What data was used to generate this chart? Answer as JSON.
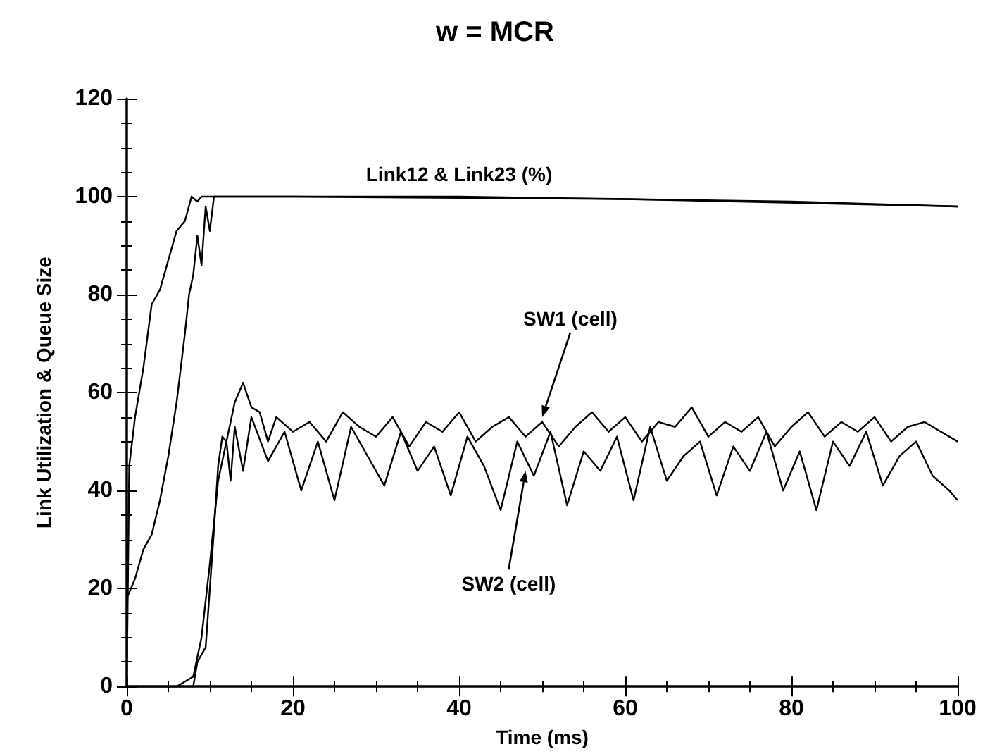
{
  "chart_data": {
    "type": "line",
    "title": "w = MCR",
    "xlabel": "Time (ms)",
    "ylabel": "Link Utilization & Queue Size",
    "xlim": [
      0,
      100
    ],
    "xticks": [
      0,
      20,
      40,
      60,
      80,
      100
    ],
    "ylim": [
      0,
      120
    ],
    "yticks": [
      0,
      20,
      40,
      60,
      80,
      100,
      120
    ],
    "grid": false,
    "marker": "none",
    "line_style": "solid",
    "series": [
      {
        "color": "#000000",
        "x": [
          0,
          0.3,
          1,
          2,
          3,
          4,
          5,
          6,
          7,
          7.8,
          8.5,
          9,
          20,
          40,
          60,
          80,
          100
        ],
        "values": [
          0,
          45,
          55,
          65,
          78,
          81,
          87,
          93,
          95,
          100,
          99,
          100,
          100,
          100,
          99.5,
          99,
          98
        ]
      },
      {
        "color": "#000000",
        "x": [
          0,
          1,
          2,
          3,
          4,
          5,
          6,
          7,
          7.5,
          8,
          8.5,
          9,
          9.5,
          10,
          10.5,
          20,
          60,
          100
        ],
        "values": [
          18,
          22,
          28,
          31,
          38,
          47,
          58,
          72,
          80,
          84,
          92,
          86,
          98,
          93,
          100,
          100,
          99.5,
          98
        ]
      },
      {
        "color": "#000000",
        "x": [
          0,
          2,
          6,
          8,
          9,
          10,
          11,
          12,
          13,
          14,
          15,
          16,
          17,
          18,
          20,
          22,
          24,
          26,
          28,
          30,
          32,
          34,
          36,
          38,
          40,
          42,
          44,
          46,
          48,
          50,
          52,
          54,
          56,
          58,
          60,
          62,
          64,
          66,
          68,
          70,
          72,
          74,
          76,
          78,
          80,
          82,
          84,
          86,
          88,
          90,
          92,
          94,
          96,
          98,
          100
        ],
        "values": [
          0,
          0,
          0,
          2,
          10,
          25,
          42,
          50,
          58,
          62,
          57,
          56,
          50,
          55,
          52,
          54,
          50,
          56,
          53,
          51,
          55,
          49,
          54,
          52,
          56,
          50,
          53,
          55,
          51,
          54,
          49,
          53,
          56,
          52,
          55,
          50,
          54,
          53,
          57,
          51,
          54,
          52,
          55,
          49,
          53,
          56,
          51,
          54,
          52,
          55,
          50,
          53,
          54,
          52,
          50
        ]
      },
      {
        "color": "#000000",
        "x": [
          0,
          8,
          8.5,
          9.5,
          10.5,
          11,
          11.5,
          12,
          12.5,
          13,
          14,
          15,
          17,
          19,
          21,
          23,
          25,
          27,
          29,
          31,
          33,
          35,
          37,
          39,
          41,
          43,
          45,
          47,
          49,
          51,
          53,
          55,
          57,
          59,
          61,
          63,
          65,
          67,
          69,
          71,
          73,
          75,
          77,
          79,
          81,
          83,
          85,
          87,
          89,
          91,
          93,
          95,
          97,
          99,
          100
        ],
        "values": [
          0,
          0,
          5,
          8,
          32,
          45,
          51,
          50,
          42,
          53,
          44,
          55,
          46,
          52,
          40,
          50,
          38,
          53,
          47,
          41,
          52,
          44,
          49,
          39,
          51,
          45,
          36,
          50,
          43,
          52,
          37,
          48,
          44,
          51,
          38,
          53,
          42,
          47,
          50,
          39,
          49,
          44,
          52,
          40,
          48,
          36,
          50,
          45,
          52,
          41,
          47,
          50,
          43,
          40,
          38
        ]
      }
    ],
    "annotations": [
      {
        "text": "Link12 & Link23 (%)",
        "x": 40,
        "y": 100
      },
      {
        "text": "SW1 (cell)",
        "x": 50,
        "y": 55
      },
      {
        "text": "SW2 (cell)",
        "x": 48,
        "y": 44
      }
    ]
  }
}
